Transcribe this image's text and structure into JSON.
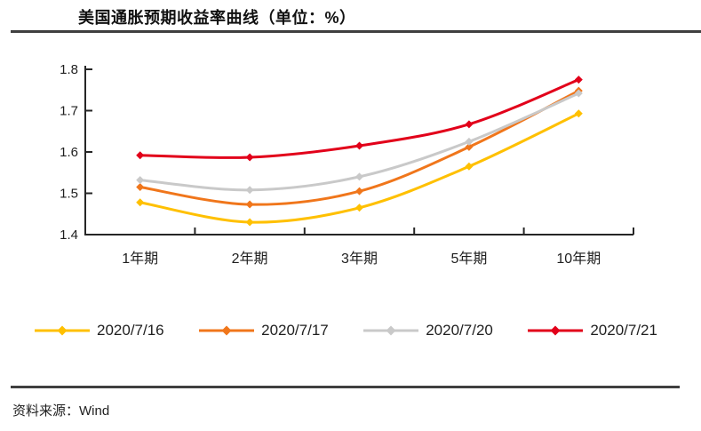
{
  "page": {
    "title": "美国通胀预期收益率曲线（单位：%）",
    "source": "资料来源：Wind"
  },
  "chart_data": {
    "type": "line",
    "title": "美国通胀预期收益率曲线（单位：%）",
    "categories": [
      "1年期",
      "2年期",
      "3年期",
      "5年期",
      "10年期"
    ],
    "series": [
      {
        "name": "2020/7/16",
        "color": "#FFC000",
        "values": [
          1.478,
          1.43,
          1.465,
          1.565,
          1.693
        ]
      },
      {
        "name": "2020/7/17",
        "color": "#F0761B",
        "values": [
          1.515,
          1.473,
          1.505,
          1.612,
          1.748
        ]
      },
      {
        "name": "2020/7/20",
        "color": "#C9C9C9",
        "values": [
          1.532,
          1.508,
          1.54,
          1.625,
          1.742
        ]
      },
      {
        "name": "2020/7/21",
        "color": "#E2001A",
        "values": [
          1.592,
          1.587,
          1.615,
          1.667,
          1.775
        ]
      }
    ],
    "ylim": [
      1.4,
      1.8
    ],
    "ytick_step": 0.1,
    "ytick_labels": [
      "1.4",
      "1.5",
      "1.6",
      "1.7",
      "1.8"
    ],
    "xlabel": "",
    "ylabel": "",
    "grid": false,
    "marker": "diamond",
    "legend_position": "bottom",
    "axis_color": "#262626"
  }
}
